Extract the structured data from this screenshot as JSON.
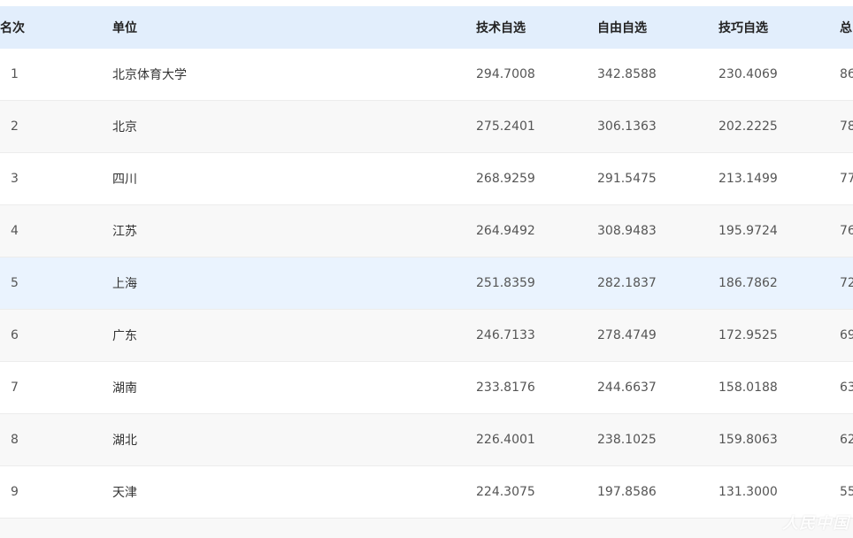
{
  "table": {
    "columns": [
      "名次",
      "单位",
      "技术自选",
      "自由自选",
      "技巧自选",
      "总"
    ],
    "rows": [
      {
        "rank": "1",
        "unit": "北京体育大学",
        "tech": "294.7008",
        "free": "342.8588",
        "skill": "230.4069",
        "total": "86"
      },
      {
        "rank": "2",
        "unit": "北京",
        "tech": "275.2401",
        "free": "306.1363",
        "skill": "202.2225",
        "total": "78"
      },
      {
        "rank": "3",
        "unit": "四川",
        "tech": "268.9259",
        "free": "291.5475",
        "skill": "213.1499",
        "total": "77"
      },
      {
        "rank": "4",
        "unit": "江苏",
        "tech": "264.9492",
        "free": "308.9483",
        "skill": "195.9724",
        "total": "76"
      },
      {
        "rank": "5",
        "unit": "上海",
        "tech": "251.8359",
        "free": "282.1837",
        "skill": "186.7862",
        "total": "72"
      },
      {
        "rank": "6",
        "unit": "广东",
        "tech": "246.7133",
        "free": "278.4749",
        "skill": "172.9525",
        "total": "69"
      },
      {
        "rank": "7",
        "unit": "湖南",
        "tech": "233.8176",
        "free": "244.6637",
        "skill": "158.0188",
        "total": "63"
      },
      {
        "rank": "8",
        "unit": "湖北",
        "tech": "226.4001",
        "free": "238.1025",
        "skill": "159.8063",
        "total": "62"
      },
      {
        "rank": "9",
        "unit": "天津",
        "tech": "224.3075",
        "free": "197.8586",
        "skill": "131.3000",
        "total": "55"
      }
    ]
  },
  "watermark": "人民中国",
  "colors": {
    "header_bg": "#e2eefc",
    "alt_row_bg": "#f8f8f8",
    "hover_row_bg": "#eaf3fe"
  }
}
